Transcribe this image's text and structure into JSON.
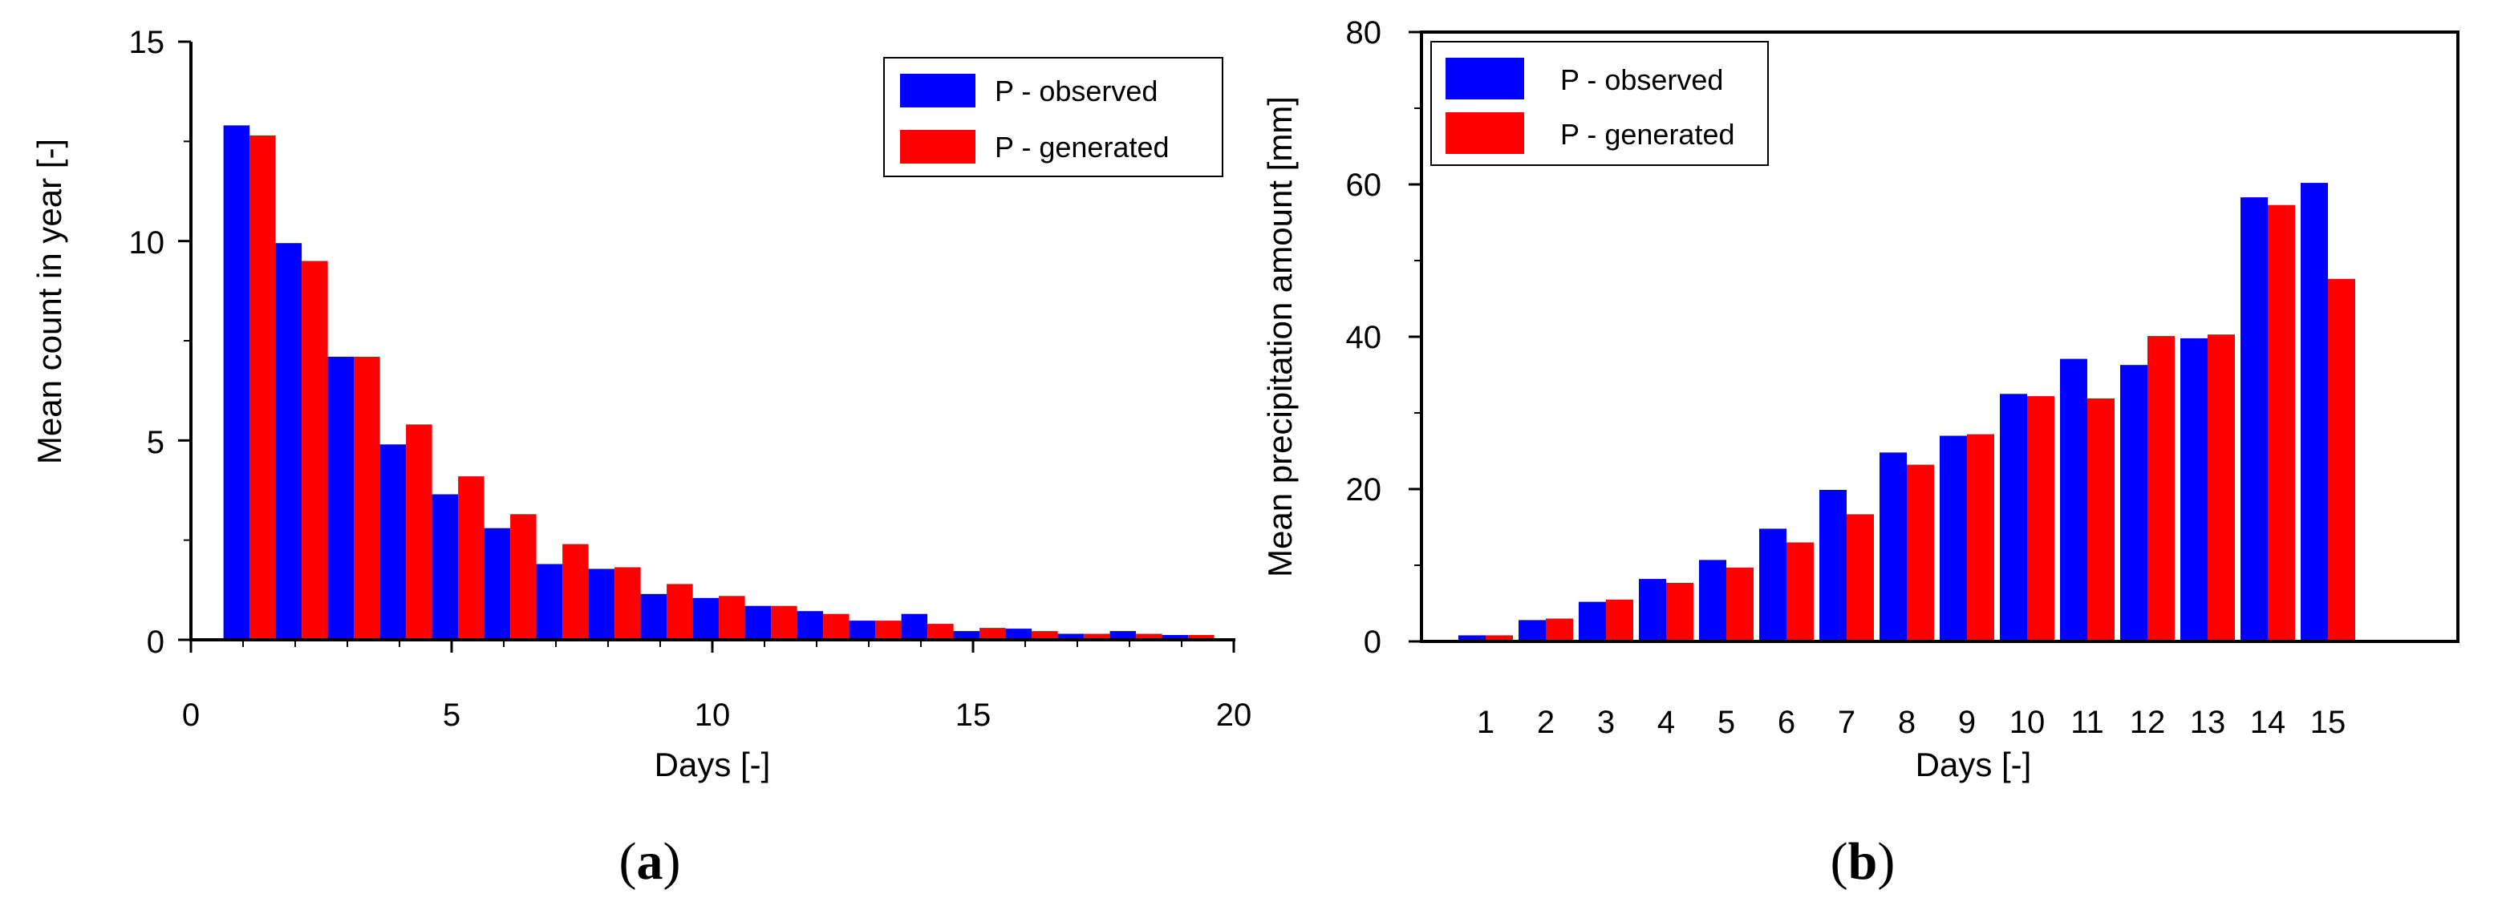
{
  "chart_data": [
    {
      "type": "bar",
      "panel_label": "(a)",
      "panel_letter": "a",
      "xlabel": "Days [-]",
      "ylabel": "Mean count in year [-]",
      "xlim": [
        0,
        20
      ],
      "ylim": [
        0,
        15
      ],
      "xticks": [
        "0",
        "5",
        "10",
        "15",
        "20"
      ],
      "yticks": [
        "0",
        "5",
        "10",
        "15"
      ],
      "legend_position": "top-right",
      "x": [
        1,
        2,
        3,
        4,
        5,
        6,
        7,
        8,
        9,
        10,
        11,
        12,
        13,
        14,
        15,
        16,
        17,
        18,
        19
      ],
      "series": [
        {
          "name": "P - observed",
          "color": "#0000ff",
          "values": [
            12.9,
            9.95,
            7.1,
            4.9,
            3.65,
            2.8,
            1.9,
            1.78,
            1.15,
            1.05,
            0.85,
            0.72,
            0.48,
            0.65,
            0.22,
            0.28,
            0.15,
            0.22,
            0.12
          ]
        },
        {
          "name": "P - generated",
          "color": "#ff0000",
          "values": [
            12.65,
            9.5,
            7.1,
            5.4,
            4.1,
            3.15,
            2.4,
            1.82,
            1.4,
            1.1,
            0.85,
            0.65,
            0.48,
            0.4,
            0.3,
            0.22,
            0.15,
            0.15,
            0.12
          ]
        }
      ]
    },
    {
      "type": "bar",
      "panel_label": "(b)",
      "panel_letter": "b",
      "xlabel": "Days [-]",
      "ylabel": "Mean precipitation amount [mm]",
      "ylim": [
        0,
        80
      ],
      "categories": [
        "1",
        "2",
        "3",
        "4",
        "5",
        "6",
        "7",
        "8",
        "9",
        "10",
        "11",
        "12",
        "13",
        "14",
        "15"
      ],
      "yticks": [
        "0",
        "20",
        "40",
        "60",
        "80"
      ],
      "legend_position": "top-left",
      "series": [
        {
          "name": "P - observed",
          "color": "#0000ff",
          "values": [
            0.8,
            2.8,
            5.2,
            8.2,
            10.7,
            14.8,
            19.9,
            24.8,
            27.0,
            32.5,
            37.1,
            36.3,
            39.8,
            58.3,
            60.2
          ]
        },
        {
          "name": "P - generated",
          "color": "#ff0000",
          "values": [
            0.8,
            3.0,
            5.5,
            7.7,
            9.7,
            13.0,
            16.7,
            23.2,
            27.2,
            32.2,
            31.9,
            40.1,
            40.3,
            57.3,
            47.6
          ]
        }
      ]
    }
  ]
}
